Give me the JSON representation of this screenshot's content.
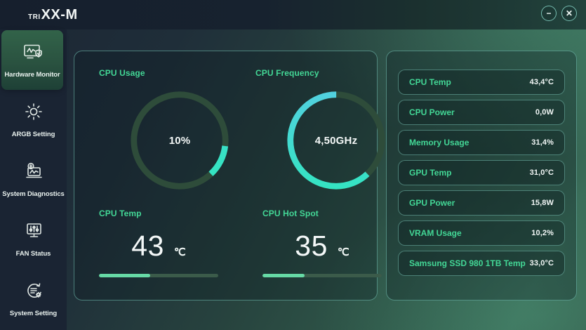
{
  "topbar": {
    "brand_prefix": "TRI",
    "brand_main": "XX-M",
    "minimize_glyph": "−",
    "close_glyph": "✕"
  },
  "sidebar": {
    "items": [
      {
        "label": "Hardware Monitor",
        "icon": "hardware-monitor-icon",
        "active": true
      },
      {
        "label": "ARGB Setting",
        "icon": "argb-setting-icon",
        "active": false
      },
      {
        "label": "System Diagnostics",
        "icon": "system-diagnostics-icon",
        "active": false
      },
      {
        "label": "FAN Status",
        "icon": "fan-status-icon",
        "active": false
      },
      {
        "label": "System Setting",
        "icon": "system-setting-icon",
        "active": false
      }
    ]
  },
  "main": {
    "gauges": [
      {
        "label": "CPU Usage",
        "value": "10%",
        "arc": {
          "start_deg": 97,
          "sweep_deg": 40
        }
      },
      {
        "label": "CPU Frequency",
        "value": "4,50GHz",
        "arc": {
          "start_deg": 137,
          "sweep_deg": 223
        }
      }
    ],
    "meters": [
      {
        "label": "CPU Temp",
        "value": "43",
        "unit": "℃",
        "percent": 43
      },
      {
        "label": "CPU Hot Spot",
        "value": "35",
        "unit": "℃",
        "percent": 35
      }
    ]
  },
  "stats": {
    "rows": [
      {
        "label": "CPU Temp",
        "value": "43,4°C"
      },
      {
        "label": "CPU Power",
        "value": "0,0W"
      },
      {
        "label": "Memory Usage",
        "value": "31,4%"
      },
      {
        "label": "GPU Temp",
        "value": "31,0°C"
      },
      {
        "label": "GPU Power",
        "value": "15,8W"
      },
      {
        "label": "VRAM Usage",
        "value": "10,2%"
      },
      {
        "label": "Samsung SSD 980 1TB Temp",
        "value": "33,0°C"
      }
    ]
  },
  "colors": {
    "accent_green": "#43d796",
    "arc_gradient_start": "#57cde4",
    "arc_gradient_end": "#2fe7bd",
    "bar_fill": "#66d9a5",
    "bar_track": "#3b5b4a",
    "ring_track": "#2e4c3a"
  }
}
